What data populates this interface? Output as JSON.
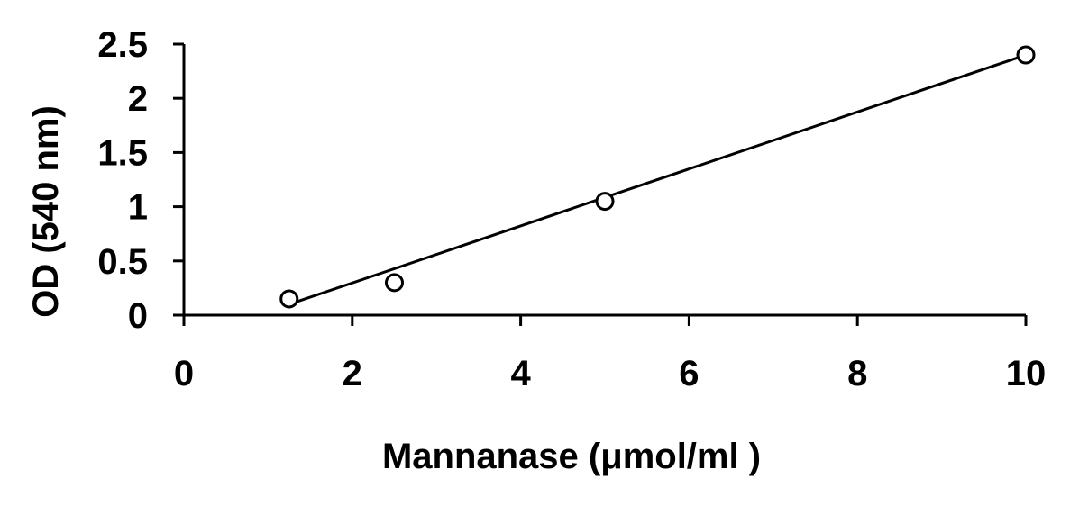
{
  "chart_data": {
    "type": "scatter",
    "title": "",
    "xlabel": "Mannanase (μmol/ml )",
    "ylabel": "OD (540 nm)",
    "xlim": [
      0,
      10
    ],
    "ylim": [
      0,
      2.5
    ],
    "x_ticks": [
      "0",
      "2",
      "4",
      "6",
      "8",
      "10"
    ],
    "y_ticks": [
      "0",
      "0.5",
      "1",
      "1.5",
      "2",
      "2.5"
    ],
    "grid": false,
    "legend": "none",
    "series": [
      {
        "values": [
          {
            "x": 1.25,
            "y": 0.15
          },
          {
            "x": 2.5,
            "y": 0.3
          },
          {
            "x": 5,
            "y": 1.05
          },
          {
            "x": 10,
            "y": 2.4
          }
        ],
        "marker": "open-circle",
        "color": "#000000"
      }
    ],
    "trendline": {
      "type": "linear",
      "from": {
        "x": 1.25,
        "y": 0.1
      },
      "to": {
        "x": 10,
        "y": 2.4
      },
      "color": "#000000"
    }
  }
}
